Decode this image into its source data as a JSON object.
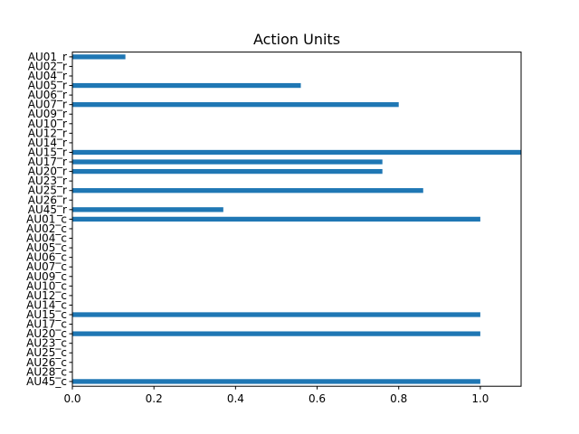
{
  "chart_data": {
    "type": "bar",
    "orientation": "horizontal",
    "title": "Action Units",
    "xlabel": "",
    "ylabel": "",
    "xlim": [
      0,
      1.1
    ],
    "xticks": [
      0.0,
      0.2,
      0.4,
      0.6,
      0.8,
      1.0
    ],
    "xtick_labels": [
      "0.0",
      "0.2",
      "0.4",
      "0.6",
      "0.8",
      "1.0"
    ],
    "grid": false,
    "bar_color": "#1f77b4",
    "categories": [
      "AU01_r",
      "AU02_r",
      "AU04_r",
      "AU05_r",
      "AU06_r",
      "AU07_r",
      "AU09_r",
      "AU10_r",
      "AU12_r",
      "AU14_r",
      "AU15_r",
      "AU17_r",
      "AU20_r",
      "AU23_r",
      "AU25_r",
      "AU26_r",
      "AU45_r",
      "AU01_c",
      "AU02_c",
      "AU04_c",
      "AU05_c",
      "AU06_c",
      "AU07_c",
      "AU09_c",
      "AU10_c",
      "AU12_c",
      "AU14_c",
      "AU15_c",
      "AU17_c",
      "AU20_c",
      "AU23_c",
      "AU25_c",
      "AU26_c",
      "AU28_c",
      "AU45_c"
    ],
    "values": [
      0.13,
      0,
      0,
      0.56,
      0,
      0.8,
      0,
      0,
      0,
      0,
      1.1,
      0.76,
      0.76,
      0,
      0.86,
      0,
      0.37,
      1.0,
      0,
      0,
      0,
      0,
      0,
      0,
      0,
      0,
      0,
      1.0,
      0,
      1.0,
      0,
      0,
      0,
      0,
      1.0
    ]
  }
}
